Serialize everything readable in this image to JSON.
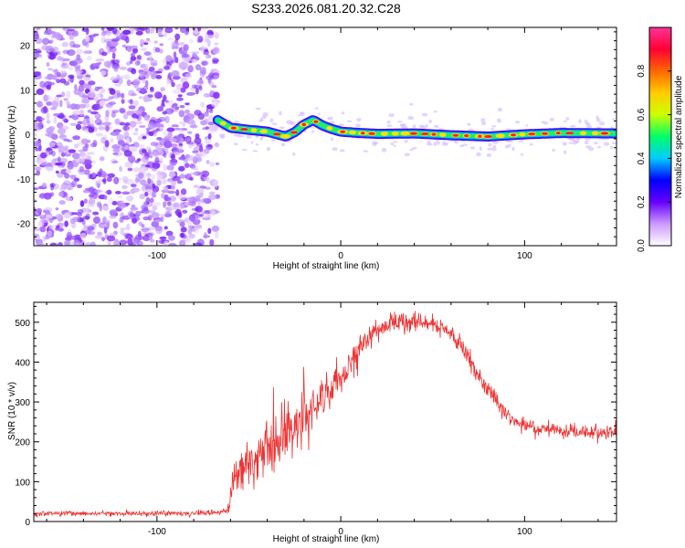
{
  "title": "S233.2026.081.20.32.C28",
  "colors": {
    "snr_line": "#ee3333",
    "frame": "#000000",
    "background": "#ffffff"
  },
  "chart_data": [
    {
      "type": "heatmap",
      "name": "spectrogram",
      "xlabel": "Height of straight line (km)",
      "ylabel": "Frequency (Hz)",
      "xlim": [
        -167,
        150
      ],
      "ylim": [
        -25,
        24
      ],
      "x_ticks": [
        -100,
        0,
        100
      ],
      "x_tick_labels": [
        "-100",
        "0",
        "100"
      ],
      "y_ticks": [
        -20,
        -10,
        0,
        10,
        20
      ],
      "y_tick_labels": [
        "-20",
        "-10",
        "0",
        "10",
        "20"
      ],
      "noise_region_x": [
        -167,
        -67
      ],
      "ridge_x": [
        -67,
        -60,
        -50,
        -40,
        -30,
        -25,
        -20,
        -15,
        -10,
        -5,
        0,
        10,
        20,
        40,
        60,
        80,
        100,
        120,
        150
      ],
      "ridge_y": [
        3.2,
        1.5,
        1.0,
        0.6,
        -0.5,
        0.5,
        2.2,
        3.2,
        2.0,
        1.2,
        0.6,
        0.3,
        0.1,
        0.2,
        -0.2,
        -0.5,
        0.0,
        0.3,
        0.2
      ],
      "colorbar": {
        "label": "Normalized spectral amplitude",
        "range": [
          0.0,
          1.0
        ],
        "ticks": [
          0.0,
          0.2,
          0.4,
          0.6,
          0.8
        ],
        "tick_labels": [
          "0.0",
          "0.2",
          "0.4",
          "0.6",
          "0.8"
        ],
        "colors": [
          "#ffffff",
          "#cc99ff",
          "#6600ff",
          "#0000ff",
          "#00ccff",
          "#00ff66",
          "#ccff00",
          "#ffcc00",
          "#ff6600",
          "#ff0033",
          "#ff3399"
        ]
      }
    },
    {
      "type": "line",
      "name": "snr",
      "xlabel": "Height of straight line (km)",
      "ylabel": "SNR (10 * v/v)",
      "xlim": [
        -167,
        150
      ],
      "ylim": [
        0,
        550
      ],
      "x_ticks": [
        -100,
        0,
        100
      ],
      "x_tick_labels": [
        "-100",
        "0",
        "100"
      ],
      "y_ticks": [
        0,
        100,
        200,
        300,
        400,
        500
      ],
      "y_tick_labels": [
        "0",
        "100",
        "200",
        "300",
        "400",
        "500"
      ],
      "x": [
        -167,
        -120,
        -80,
        -62,
        -58,
        -55,
        -50,
        -45,
        -40,
        -35,
        -30,
        -25,
        -20,
        -15,
        -10,
        -5,
        0,
        5,
        10,
        15,
        20,
        25,
        30,
        35,
        40,
        45,
        50,
        55,
        60,
        65,
        70,
        75,
        80,
        85,
        90,
        95,
        100,
        110,
        120,
        130,
        140,
        150
      ],
      "y": [
        20,
        20,
        20,
        25,
        100,
        120,
        145,
        165,
        185,
        200,
        220,
        240,
        255,
        275,
        300,
        330,
        360,
        395,
        430,
        460,
        480,
        492,
        498,
        500,
        500,
        498,
        495,
        485,
        470,
        445,
        410,
        370,
        335,
        300,
        270,
        250,
        240,
        230,
        228,
        226,
        225,
        225
      ],
      "noise_amplitude": [
        6,
        6,
        6,
        8,
        50,
        60,
        65,
        70,
        70,
        70,
        70,
        65,
        60,
        55,
        50,
        45,
        40,
        38,
        35,
        30,
        26,
        24,
        22,
        22,
        22,
        22,
        22,
        22,
        22,
        20,
        20,
        20,
        20,
        18,
        18,
        18,
        18,
        16,
        16,
        16,
        16,
        16
      ]
    }
  ]
}
